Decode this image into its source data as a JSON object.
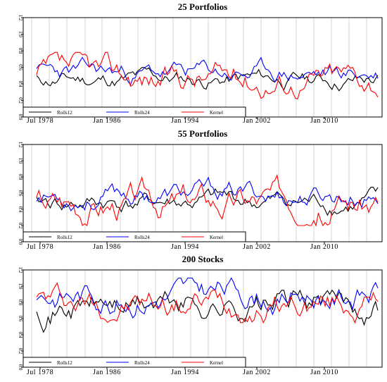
{
  "chart_data": [
    {
      "type": "line",
      "title": "25 Portfolios",
      "x_ticks": [
        "Jul 1978",
        "Jan 1986",
        "Jan 1994",
        "Jan 2002",
        "Jan 2010"
      ],
      "y_ticks": [
        "0.0",
        "0.2",
        "0.4",
        "0.6",
        "0.8",
        "1.0",
        "1.2"
      ],
      "ylim": [
        0,
        1.2
      ],
      "grid": true,
      "legend": "bottom-left",
      "series": [
        {
          "name": "Rolls12",
          "color": "#000000",
          "range": [
            0.28,
            0.6
          ],
          "base": 0.45,
          "seed": 11
        },
        {
          "name": "Rolls24",
          "color": "#0000ff",
          "range": [
            0.35,
            0.72
          ],
          "base": 0.52,
          "seed": 23
        },
        {
          "name": "Kernel",
          "color": "#ff0000",
          "range": [
            0.22,
            0.78
          ],
          "base": 0.48,
          "seed": 37
        }
      ]
    },
    {
      "type": "line",
      "title": "55 Portfolios",
      "x_ticks": [
        "Jul 1978",
        "Jan 1986",
        "Jan 1994",
        "Jan 2002",
        "Jan 2010"
      ],
      "y_ticks": [
        "0.0",
        "0.2",
        "0.4",
        "0.6",
        "0.8",
        "1.0",
        "1.2"
      ],
      "ylim": [
        0,
        1.2
      ],
      "grid": true,
      "legend": "bottom-left",
      "series": [
        {
          "name": "Rolls12",
          "color": "#000000",
          "range": [
            0.3,
            0.68
          ],
          "base": 0.48,
          "seed": 41
        },
        {
          "name": "Rolls24",
          "color": "#0000ff",
          "range": [
            0.38,
            0.8
          ],
          "base": 0.58,
          "seed": 53
        },
        {
          "name": "Kernel",
          "color": "#ff0000",
          "range": [
            0.2,
            0.82
          ],
          "base": 0.5,
          "seed": 67
        }
      ]
    },
    {
      "type": "line",
      "title": "200 Stocks",
      "x_ticks": [
        "Jul 1978",
        "Jan 1986",
        "Jan 1994",
        "Jan 2002",
        "Jan 2010"
      ],
      "y_ticks": [
        "0.0",
        "0.2",
        "0.4",
        "0.6",
        "0.8",
        "1.0",
        "1.2"
      ],
      "ylim": [
        0,
        1.2
      ],
      "grid": true,
      "legend": "bottom-left",
      "series": [
        {
          "name": "Rolls12",
          "color": "#000000",
          "range": [
            0.4,
            0.95
          ],
          "base": 0.78,
          "seed": 71
        },
        {
          "name": "Rolls24",
          "color": "#0000ff",
          "range": [
            0.55,
            1.1
          ],
          "base": 0.92,
          "seed": 83
        },
        {
          "name": "Kernel",
          "color": "#ff0000",
          "range": [
            0.55,
            1.12
          ],
          "base": 0.8,
          "seed": 97
        }
      ]
    }
  ]
}
